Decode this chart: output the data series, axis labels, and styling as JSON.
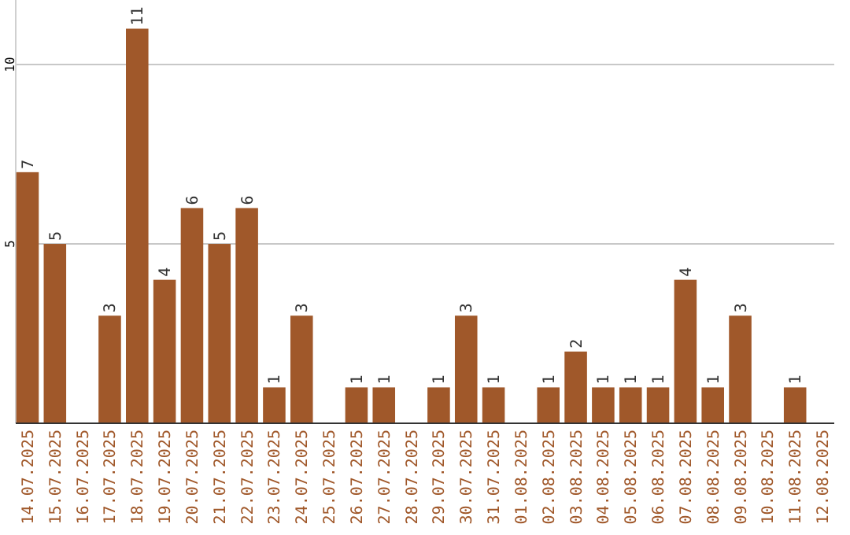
{
  "chart_data": {
    "type": "bar",
    "categories": [
      "14.07.2025",
      "15.07.2025",
      "16.07.2025",
      "17.07.2025",
      "18.07.2025",
      "19.07.2025",
      "20.07.2025",
      "21.07.2025",
      "22.07.2025",
      "23.07.2025",
      "24.07.2025",
      "25.07.2025",
      "26.07.2025",
      "27.07.2025",
      "28.07.2025",
      "29.07.2025",
      "30.07.2025",
      "31.07.2025",
      "01.08.2025",
      "02.08.2025",
      "03.08.2025",
      "04.08.2025",
      "05.08.2025",
      "06.08.2025",
      "07.08.2025",
      "08.08.2025",
      "09.08.2025",
      "10.08.2025",
      "11.08.2025",
      "12.08.2025"
    ],
    "values": [
      7,
      5,
      0,
      3,
      11,
      4,
      6,
      5,
      6,
      1,
      3,
      0,
      1,
      1,
      0,
      1,
      3,
      1,
      0,
      1,
      2,
      1,
      1,
      1,
      4,
      1,
      3,
      0,
      1,
      0
    ],
    "value_labels": [
      "7",
      "5",
      null,
      "3",
      "11",
      "4",
      "6",
      "5",
      "6",
      "1",
      "3",
      null,
      "1",
      "1",
      null,
      "1",
      "3",
      "1",
      null,
      "1",
      "2",
      "1",
      "1",
      "1",
      "4",
      "1",
      "3",
      null,
      "1",
      null
    ],
    "color": "#a0582a",
    "ylim": [
      0,
      11.8
    ],
    "yticks": [
      5,
      10
    ],
    "grid": "y"
  }
}
